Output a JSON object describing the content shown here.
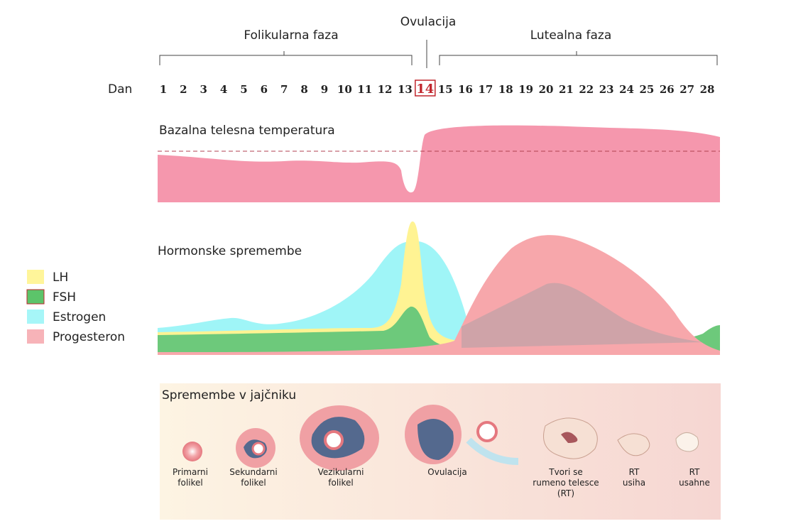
{
  "phases": {
    "follicular": "Folikularna faza",
    "ovulation": "Ovulacija",
    "luteal": "Lutealna faza"
  },
  "days": {
    "label": "Dan",
    "values": [
      1,
      2,
      3,
      4,
      5,
      6,
      7,
      8,
      9,
      10,
      11,
      12,
      13,
      14,
      15,
      16,
      17,
      18,
      19,
      20,
      21,
      22,
      23,
      24,
      25,
      26,
      27,
      28
    ],
    "highlight": 14
  },
  "temperature": {
    "title": "Bazalna telesna temperatura"
  },
  "hormones": {
    "title": "Hormonske spremembe",
    "legend": [
      {
        "name": "LH",
        "color": "#fff59a"
      },
      {
        "name": "FSH",
        "color": "#5cc46a"
      },
      {
        "name": "Estrogen",
        "color": "#a6f6f8"
      },
      {
        "name": "Progesteron",
        "color": "#f7b3b8"
      }
    ]
  },
  "ovary": {
    "title": "Spremembe v jajčniku",
    "stages": [
      {
        "lines": [
          "Primarni",
          "folikel"
        ]
      },
      {
        "lines": [
          "Sekundarni",
          "folikel"
        ]
      },
      {
        "lines": [
          "Vezikularni",
          "folikel"
        ]
      },
      {
        "lines": [
          "Ovulacija"
        ]
      },
      {
        "lines": [
          "Tvori se",
          "rumeno telesce",
          "(RT)"
        ]
      },
      {
        "lines": [
          "RT",
          "usiha"
        ]
      },
      {
        "lines": [
          "RT",
          "usahne"
        ]
      }
    ]
  }
}
